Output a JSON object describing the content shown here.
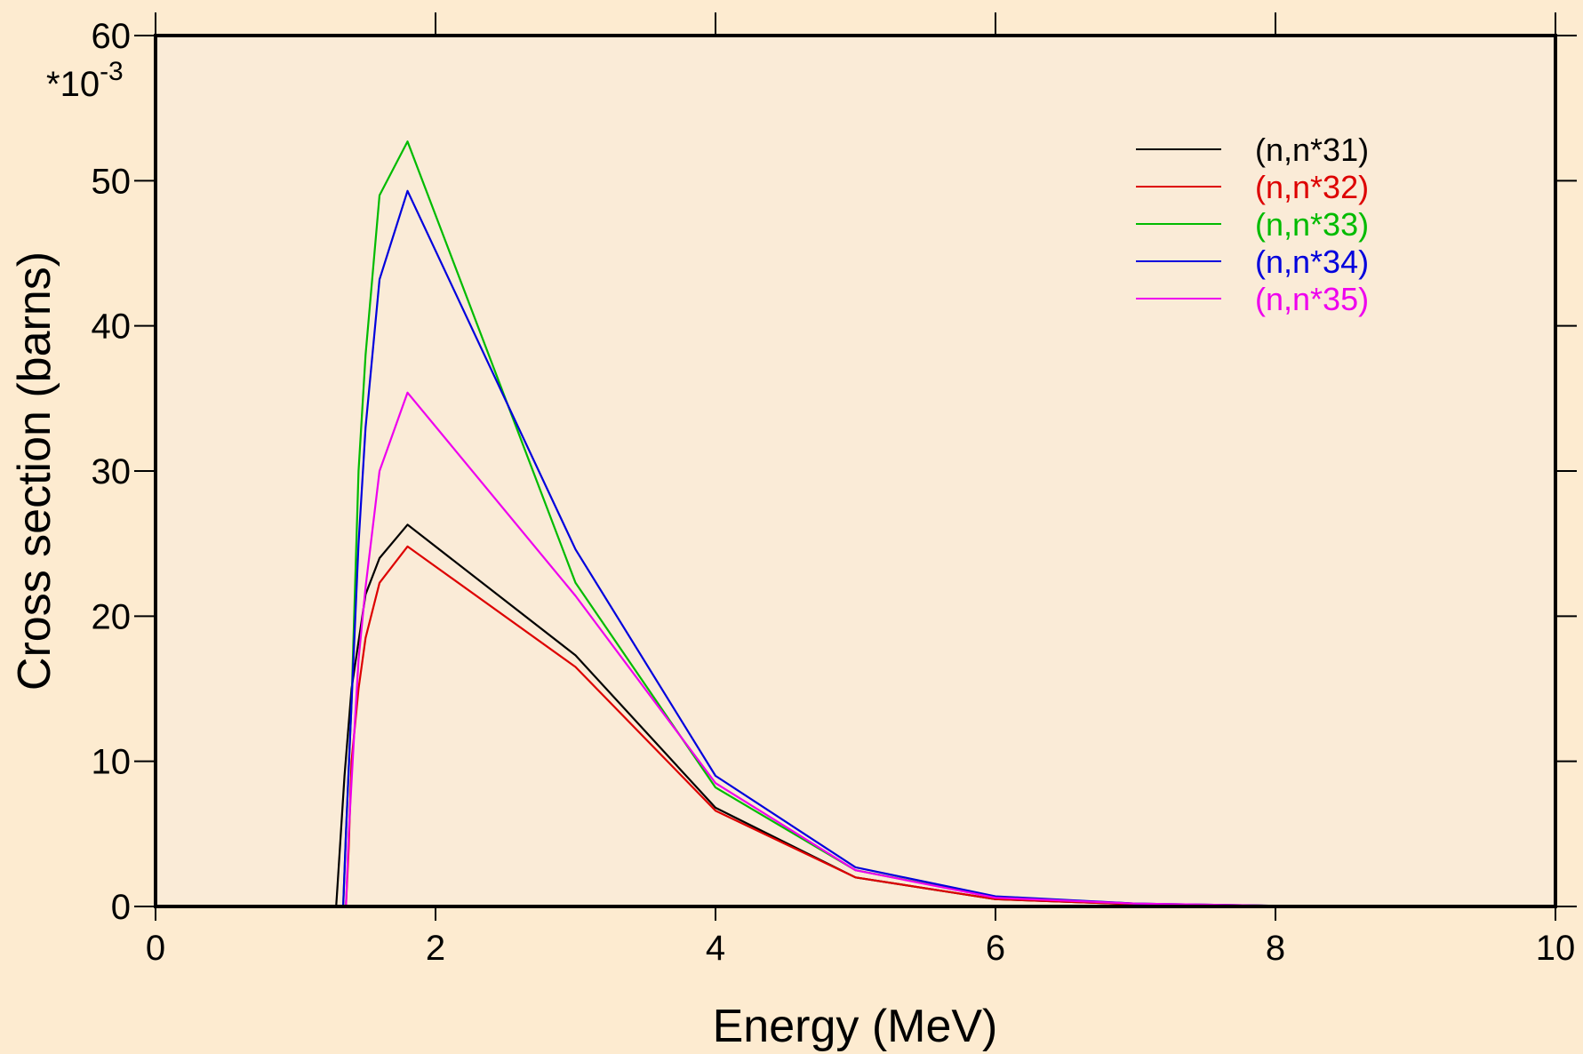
{
  "chart_data": {
    "type": "line",
    "xlabel": "Energy (MeV)",
    "ylabel": "Cross section (barns)",
    "y_multiplier": "*10",
    "y_multiplier_exponent": "-3",
    "xlim": [
      0,
      10
    ],
    "ylim": [
      0,
      60
    ],
    "x_ticks": [
      0,
      2,
      4,
      6,
      8,
      10
    ],
    "y_ticks": [
      0,
      10,
      20,
      30,
      40,
      50,
      60
    ],
    "grid": false,
    "legend_position": "top-right",
    "background_color": "#fdebd0",
    "plot_background_color": "#faebd7",
    "series": [
      {
        "name": "(n,n*31)",
        "color": "#000000",
        "x": [
          1.29,
          1.3,
          1.35,
          1.4,
          1.5,
          1.6,
          1.8,
          3,
          4,
          5,
          6,
          7,
          8,
          10
        ],
        "y": [
          0,
          1.5,
          9,
          15,
          21.5,
          24,
          26.3,
          17.3,
          6.8,
          2.0,
          0.5,
          0.15,
          0.05,
          0.02
        ]
      },
      {
        "name": "(n,n*32)",
        "color": "#dd0000",
        "x": [
          1.36,
          1.38,
          1.4,
          1.45,
          1.5,
          1.6,
          1.8,
          3,
          4,
          5,
          6,
          7,
          8,
          10
        ],
        "y": [
          0,
          4,
          10,
          15,
          18.5,
          22.3,
          24.8,
          16.5,
          6.6,
          2.0,
          0.5,
          0.15,
          0.05,
          0.02
        ]
      },
      {
        "name": "(n,n*33)",
        "color": "#00bb00",
        "x": [
          1.34,
          1.36,
          1.4,
          1.45,
          1.5,
          1.6,
          1.8,
          3,
          4,
          5,
          6,
          7,
          8,
          10
        ],
        "y": [
          0,
          5,
          14,
          30,
          38,
          49,
          52.7,
          22.3,
          8.2,
          2.5,
          0.65,
          0.2,
          0.05,
          0.02
        ]
      },
      {
        "name": "(n,n*34)",
        "color": "#0000dd",
        "x": [
          1.34,
          1.36,
          1.4,
          1.45,
          1.5,
          1.6,
          1.8,
          3,
          4,
          5,
          6,
          7,
          8,
          10
        ],
        "y": [
          0,
          5,
          14,
          25,
          33,
          43.2,
          49.3,
          24.6,
          9.0,
          2.7,
          0.7,
          0.2,
          0.05,
          0.02
        ]
      },
      {
        "name": "(n,n*35)",
        "color": "#ee00ee",
        "x": [
          1.36,
          1.38,
          1.42,
          1.45,
          1.5,
          1.6,
          1.8,
          3,
          4,
          5,
          6,
          7,
          8,
          10
        ],
        "y": [
          0,
          5,
          12,
          17,
          22,
          30,
          35.4,
          21.4,
          8.5,
          2.5,
          0.6,
          0.2,
          0.05,
          0.02
        ]
      }
    ]
  }
}
